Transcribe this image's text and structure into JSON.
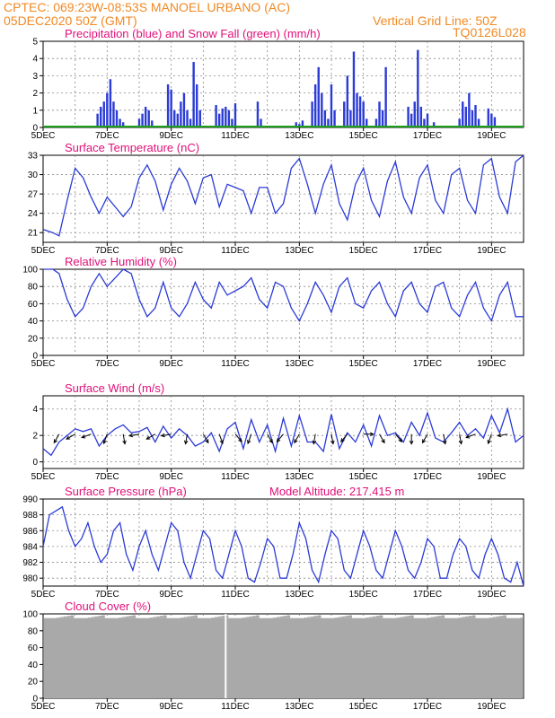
{
  "header": {
    "line1_left": "CPTEC:   069:23W-08:53S   MANOEL URBANO (AC)",
    "line2_left": "05DEC2020 50Z (GMT)",
    "line2_right": "Vertical Grid Line: 50Z",
    "line3_right": "TQ0126L028"
  },
  "colors": {
    "header": "#f08a24",
    "title": "#e0107a",
    "series": "#2b3bd6",
    "snow": "#1aa01a",
    "cloud": "#a9a9a9"
  },
  "chart_data": [
    {
      "id": "precip",
      "type": "bar",
      "title": "Precipitation (blue) and Snow Fall (green) (mm/h)",
      "x_ticks": [
        "5DEC",
        "7DEC",
        "9DEC",
        "11DEC",
        "13DEC",
        "15DEC",
        "17DEC",
        "19DEC"
      ],
      "ylim": [
        0,
        5
      ],
      "y_ticks": [
        0,
        1,
        2,
        3,
        4,
        5
      ],
      "x_start_day": 5,
      "x_end_day": 20,
      "series": [
        {
          "name": "Precipitation",
          "x": [
            6.7,
            6.8,
            6.9,
            7.0,
            7.1,
            7.2,
            7.3,
            7.4,
            7.5,
            8.0,
            8.1,
            8.2,
            8.3,
            8.4,
            8.9,
            9.0,
            9.1,
            9.2,
            9.3,
            9.4,
            9.5,
            9.6,
            9.7,
            9.8,
            9.9,
            10.4,
            10.5,
            10.6,
            10.7,
            10.8,
            10.9,
            11.0,
            11.7,
            11.8,
            12.9,
            13.0,
            13.1,
            13.4,
            13.5,
            13.6,
            13.7,
            13.8,
            13.9,
            14.0,
            14.1,
            14.4,
            14.5,
            14.6,
            14.7,
            14.8,
            14.9,
            15.0,
            15.1,
            15.4,
            15.5,
            15.6,
            15.7,
            16.4,
            16.5,
            16.6,
            16.7,
            16.8,
            16.9,
            17.0,
            17.2,
            18.0,
            18.1,
            18.2,
            18.3,
            18.4,
            18.5,
            18.6,
            18.9,
            19.0,
            19.1
          ],
          "values": [
            0.8,
            1.2,
            1.5,
            2.0,
            2.8,
            1.5,
            1.0,
            0.5,
            0.3,
            0.5,
            0.8,
            1.2,
            1.0,
            0.4,
            2.5,
            2.2,
            1.0,
            0.8,
            1.5,
            2.0,
            1.0,
            0.5,
            3.8,
            2.5,
            1.0,
            1.3,
            0.8,
            1.1,
            1.2,
            1.0,
            0.5,
            1.4,
            1.5,
            0.5,
            0.3,
            0.2,
            0.4,
            1.5,
            2.5,
            3.5,
            2.0,
            1.0,
            0.5,
            2.5,
            1.0,
            1.5,
            3.0,
            1.0,
            4.4,
            2.0,
            1.8,
            1.5,
            0.5,
            0.5,
            1.5,
            1.0,
            3.5,
            1.2,
            0.8,
            1.5,
            4.5,
            1.2,
            0.5,
            0.8,
            0.3,
            0.5,
            1.5,
            1.2,
            2.0,
            1.0,
            1.3,
            0.5,
            1.1,
            0.8,
            0.6
          ]
        },
        {
          "name": "Snow Fall",
          "x": [
            5,
            20
          ],
          "values": [
            0,
            0
          ]
        }
      ]
    },
    {
      "id": "temp",
      "type": "line",
      "title": "Surface Temperature (nC)",
      "x_ticks": [
        "5DEC",
        "7DEC",
        "9DEC",
        "11DEC",
        "13DEC",
        "15DEC",
        "17DEC",
        "19DEC"
      ],
      "ylim": [
        19.5,
        33
      ],
      "y_ticks": [
        21,
        24,
        27,
        30,
        33
      ],
      "x_start_day": 5,
      "x_end_day": 20,
      "series": [
        {
          "name": "Temperature",
          "x": [
            5.0,
            5.3,
            5.5,
            5.75,
            6.0,
            6.25,
            6.5,
            6.75,
            7.0,
            7.25,
            7.5,
            7.75,
            8.0,
            8.25,
            8.5,
            8.75,
            9.0,
            9.25,
            9.5,
            9.75,
            10.0,
            10.25,
            10.5,
            10.75,
            11.0,
            11.25,
            11.5,
            11.75,
            12.0,
            12.25,
            12.5,
            12.75,
            13.0,
            13.25,
            13.5,
            13.75,
            14.0,
            14.25,
            14.5,
            14.75,
            15.0,
            15.25,
            15.5,
            15.75,
            16.0,
            16.25,
            16.5,
            16.75,
            17.0,
            17.25,
            17.5,
            17.75,
            18.0,
            18.25,
            18.5,
            18.75,
            19.0,
            19.25,
            19.5,
            19.75,
            20.0
          ],
          "values": [
            21.5,
            21.0,
            20.5,
            26.0,
            31.0,
            29.5,
            26.5,
            24.0,
            26.5,
            25.0,
            23.5,
            25.0,
            29.5,
            31.5,
            29.0,
            24.5,
            28.5,
            31.0,
            29.0,
            25.5,
            29.5,
            30.0,
            25.0,
            28.5,
            28.0,
            27.5,
            24.0,
            28.0,
            28.0,
            24.0,
            25.5,
            31.0,
            32.5,
            28.5,
            24.0,
            28.5,
            31.5,
            25.5,
            23.0,
            28.5,
            31.0,
            26.0,
            23.5,
            29.0,
            32.0,
            26.5,
            24.0,
            29.5,
            31.5,
            26.0,
            24.0,
            30.0,
            31.0,
            26.0,
            24.0,
            31.5,
            32.5,
            26.5,
            24.0,
            32.0,
            33.0
          ]
        }
      ]
    },
    {
      "id": "rh",
      "type": "line",
      "title": "Relative Humidity (%)",
      "x_ticks": [
        "5DEC",
        "7DEC",
        "9DEC",
        "11DEC",
        "13DEC",
        "15DEC",
        "17DEC",
        "19DEC"
      ],
      "ylim": [
        0,
        100
      ],
      "y_ticks": [
        0,
        20,
        40,
        60,
        80,
        100
      ],
      "x_start_day": 5,
      "x_end_day": 20,
      "series": [
        {
          "name": "Relative Humidity",
          "x": [
            5.0,
            5.3,
            5.5,
            5.75,
            6.0,
            6.25,
            6.5,
            6.75,
            7.0,
            7.25,
            7.5,
            7.75,
            8.0,
            8.25,
            8.5,
            8.75,
            9.0,
            9.25,
            9.5,
            9.75,
            10.0,
            10.25,
            10.5,
            10.75,
            11.0,
            11.25,
            11.5,
            11.75,
            12.0,
            12.25,
            12.5,
            12.75,
            13.0,
            13.25,
            13.5,
            13.75,
            14.0,
            14.25,
            14.5,
            14.75,
            15.0,
            15.25,
            15.5,
            15.75,
            16.0,
            16.25,
            16.5,
            16.75,
            17.0,
            17.25,
            17.5,
            17.75,
            18.0,
            18.25,
            18.5,
            18.75,
            19.0,
            19.25,
            19.5,
            19.75,
            20.0
          ],
          "values": [
            100,
            100,
            95,
            65,
            45,
            55,
            80,
            95,
            80,
            90,
            100,
            95,
            65,
            45,
            55,
            85,
            55,
            45,
            60,
            85,
            65,
            55,
            85,
            70,
            75,
            80,
            90,
            65,
            55,
            85,
            80,
            55,
            40,
            60,
            85,
            70,
            50,
            80,
            90,
            60,
            55,
            75,
            85,
            60,
            45,
            75,
            85,
            60,
            50,
            80,
            85,
            55,
            45,
            70,
            85,
            55,
            40,
            70,
            85,
            45,
            45
          ]
        }
      ]
    },
    {
      "id": "wind",
      "type": "line",
      "title": "Surface Wind (m/s)",
      "x_ticks": [
        "5DEC",
        "7DEC",
        "9DEC",
        "11DEC",
        "13DEC",
        "15DEC",
        "17DEC",
        "19DEC"
      ],
      "ylim": [
        -0.5,
        5
      ],
      "y_ticks": [
        0,
        2,
        4
      ],
      "x_start_day": 5,
      "x_end_day": 20,
      "series": [
        {
          "name": "Wind speed",
          "x": [
            5.0,
            5.25,
            5.5,
            5.75,
            6.0,
            6.25,
            6.5,
            6.75,
            7.0,
            7.25,
            7.5,
            7.75,
            8.0,
            8.25,
            8.5,
            8.75,
            9.0,
            9.25,
            9.5,
            9.75,
            10.0,
            10.25,
            10.5,
            10.75,
            11.0,
            11.25,
            11.5,
            11.75,
            12.0,
            12.25,
            12.5,
            12.75,
            13.0,
            13.25,
            13.5,
            13.75,
            14.0,
            14.25,
            14.5,
            14.75,
            15.0,
            15.25,
            15.5,
            15.75,
            16.0,
            16.25,
            16.5,
            16.75,
            17.0,
            17.25,
            17.5,
            17.75,
            18.0,
            18.25,
            18.5,
            18.75,
            19.0,
            19.25,
            19.5,
            19.75,
            20.0
          ],
          "values": [
            1.0,
            0.5,
            1.5,
            2.0,
            2.5,
            2.3,
            2.5,
            1.2,
            2.0,
            2.5,
            2.8,
            2.2,
            2.3,
            2.6,
            1.5,
            2.7,
            1.8,
            2.5,
            2.0,
            1.2,
            1.5,
            2.2,
            0.8,
            2.5,
            3.0,
            1.0,
            3.2,
            1.5,
            2.8,
            0.8,
            3.3,
            1.2,
            3.5,
            1.5,
            1.5,
            0.8,
            3.6,
            1.0,
            2.2,
            1.5,
            2.8,
            1.2,
            3.5,
            2.0,
            2.2,
            1.5,
            3.0,
            2.0,
            3.7,
            1.8,
            1.5,
            2.2,
            3.0,
            2.0,
            2.5,
            1.8,
            3.5,
            2.2,
            4.0,
            1.5,
            2.0
          ]
        }
      ],
      "vector_x_days": [
        5.5,
        6.0,
        6.5,
        7.0,
        7.5,
        8.0,
        8.5,
        9.0,
        9.5,
        10.0,
        10.5,
        11.0,
        11.5,
        12.0,
        12.5,
        13.0,
        13.5,
        14.0,
        14.5,
        15.0,
        15.5,
        16.0,
        16.5,
        17.0,
        17.5,
        18.0,
        18.5,
        19.0,
        19.5
      ],
      "vector_angles_deg": [
        -120,
        -150,
        -160,
        -110,
        -80,
        -170,
        -150,
        -170,
        -100,
        -60,
        -70,
        -50,
        -110,
        -60,
        -130,
        -120,
        -100,
        -80,
        -130,
        0,
        -60,
        -50,
        -90,
        -120,
        -80,
        -80,
        -160,
        -110,
        -170
      ]
    },
    {
      "id": "pres",
      "type": "line",
      "title": "Surface Pressure (hPa)",
      "subtitle": "Model Altitude: 217.415 m",
      "x_ticks": [
        "5DEC",
        "7DEC",
        "9DEC",
        "11DEC",
        "13DEC",
        "15DEC",
        "17DEC",
        "19DEC"
      ],
      "ylim": [
        979,
        990
      ],
      "y_ticks": [
        980,
        982,
        984,
        986,
        988,
        990
      ],
      "x_start_day": 5,
      "x_end_day": 20,
      "series": [
        {
          "name": "Pressure",
          "x": [
            5.0,
            5.2,
            5.4,
            5.6,
            5.8,
            6.0,
            6.2,
            6.4,
            6.6,
            6.8,
            7.0,
            7.2,
            7.4,
            7.6,
            7.8,
            8.0,
            8.2,
            8.4,
            8.6,
            8.8,
            9.0,
            9.2,
            9.4,
            9.6,
            9.8,
            10.0,
            10.2,
            10.4,
            10.6,
            10.8,
            11.0,
            11.2,
            11.4,
            11.6,
            11.8,
            12.0,
            12.2,
            12.4,
            12.6,
            12.8,
            13.0,
            13.2,
            13.4,
            13.6,
            13.8,
            14.0,
            14.2,
            14.4,
            14.6,
            14.8,
            15.0,
            15.2,
            15.4,
            15.6,
            15.8,
            16.0,
            16.2,
            16.4,
            16.6,
            16.8,
            17.0,
            17.2,
            17.4,
            17.6,
            17.8,
            18.0,
            18.2,
            18.4,
            18.6,
            18.8,
            19.0,
            19.2,
            19.4,
            19.6,
            19.8,
            20.0
          ],
          "values": [
            984,
            988,
            988.5,
            989,
            986,
            984,
            985,
            987,
            984,
            982,
            983,
            986,
            987,
            983,
            981,
            984,
            986,
            983,
            981,
            984,
            987,
            986,
            982,
            980,
            983,
            986,
            985,
            981,
            980,
            983,
            986,
            984,
            980,
            979.5,
            982,
            985,
            984,
            980,
            980,
            983,
            987,
            985,
            981,
            979.5,
            983,
            986,
            985,
            981,
            980,
            983,
            986,
            984,
            981,
            980,
            983,
            986,
            984,
            981,
            980,
            982,
            985,
            984,
            980,
            980,
            983,
            985,
            984,
            981,
            980,
            983,
            985,
            983,
            980,
            979.5,
            982,
            979
          ]
        }
      ]
    },
    {
      "id": "cloud",
      "type": "bar",
      "title": "Cloud Cover (%)",
      "x_ticks": [
        "5DEC",
        "7DEC",
        "9DEC",
        "11DEC",
        "13DEC",
        "15DEC",
        "17DEC",
        "19DEC"
      ],
      "ylim": [
        0,
        100
      ],
      "y_ticks": [
        0,
        20,
        40,
        60,
        80,
        100
      ],
      "x_start_day": 5,
      "x_end_day": 20,
      "series": [
        {
          "name": "Cloud Cover",
          "x": [
            5,
            20
          ],
          "values": [
            95,
            95
          ]
        }
      ],
      "gap_x_day": 10.7
    }
  ]
}
